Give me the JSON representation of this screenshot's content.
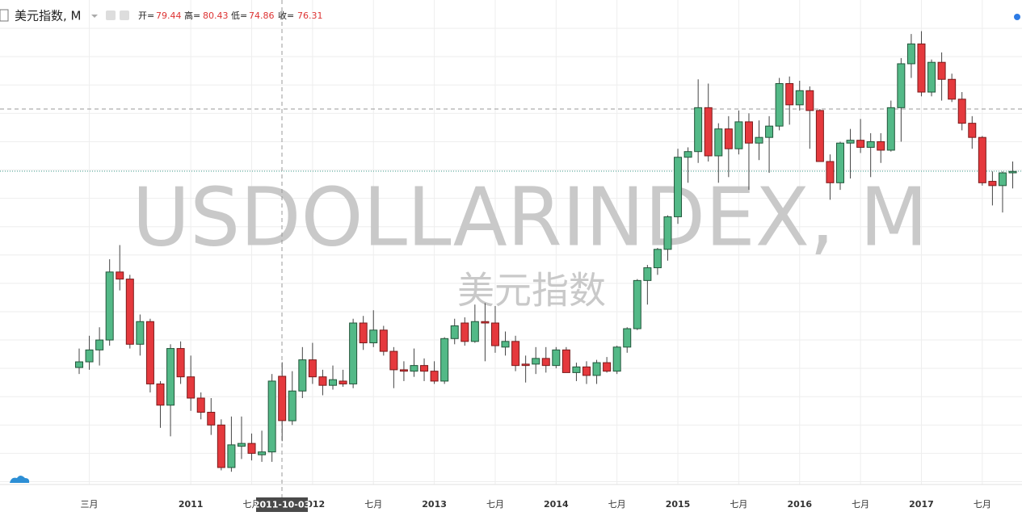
{
  "chart_data": {
    "type": "candlestick",
    "symbol": "美元指数, M",
    "ohlc_labels": [
      "开=",
      "高=",
      "低=",
      "收="
    ],
    "watermark": "USDOLLARINDEX, M",
    "watermark_subtitle": "美元指数",
    "crosshair_label": "2011-10-03",
    "categories": [
      null,
      "三月",
      null,
      null,
      null,
      null,
      null,
      null,
      null,
      null,
      null,
      "2011",
      null,
      null,
      null,
      null,
      null,
      "七月",
      null,
      null,
      null,
      null,
      null,
      "2012",
      null,
      null,
      null,
      null,
      null,
      "七月",
      null,
      null,
      null,
      null,
      null,
      "2013",
      null,
      null,
      null,
      null,
      null,
      "七月",
      null,
      null,
      null,
      null,
      null,
      "2014",
      null,
      null,
      null,
      null,
      null,
      "七月",
      null,
      null,
      null,
      null,
      null,
      "2015",
      null,
      null,
      null,
      null,
      null,
      "七月",
      null,
      null,
      null,
      null,
      null,
      "2016",
      null,
      null,
      null,
      null,
      null,
      "七月",
      null,
      null,
      null,
      null,
      null,
      "2017",
      null,
      null,
      null,
      null,
      null,
      "七月",
      null,
      null,
      null
    ],
    "open": [
      80.06,
      80.46,
      81.3,
      82.0,
      86.8,
      86.3,
      81.7,
      83.3,
      78.9,
      77.4,
      81.4,
      79.4,
      77.9,
      76.9,
      76.0,
      73.0,
      74.5,
      74.7,
      73.9,
      74.1,
      79.44,
      76.3,
      78.4,
      80.6,
      79.4,
      78.8,
      79.1,
      78.9,
      83.2,
      81.8,
      82.7,
      81.2,
      79.9,
      79.8,
      80.2,
      79.8,
      79.1,
      82.1,
      83.2,
      81.9,
      83.3,
      83.2,
      81.5,
      81.9,
      80.3,
      80.3,
      80.7,
      80.2,
      81.3,
      79.7,
      80.1,
      79.5,
      80.4,
      79.8,
      81.5,
      82.8,
      86.2,
      87.1,
      88.4,
      90.7,
      94.9,
      95.3,
      98.4,
      95.0,
      96.9,
      95.5,
      97.4,
      95.9,
      96.3,
      97.1,
      100.1,
      98.6,
      99.6,
      98.2,
      94.6,
      93.1,
      95.9,
      96.1,
      95.6,
      96.0,
      95.4,
      98.4,
      101.5,
      102.9,
      99.5,
      101.6,
      100.4,
      99.0,
      97.3,
      96.3,
      93.2,
      92.9,
      93.8
    ],
    "high": [
      81.4,
      82.3,
      82.9,
      87.7,
      88.7,
      86.6,
      83.8,
      83.5,
      79.1,
      81.7,
      81.9,
      80.9,
      78.3,
      77.9,
      76.4,
      76.6,
      76.6,
      75.4,
      75.6,
      79.6,
      80.43,
      79.8,
      81.5,
      81.8,
      79.9,
      80.2,
      79.9,
      83.5,
      83.7,
      84.1,
      83.0,
      81.5,
      80.5,
      81.4,
      80.7,
      80.5,
      82.2,
      83.5,
      83.6,
      84.5,
      84.6,
      84.4,
      82.6,
      82.3,
      80.9,
      81.5,
      81.5,
      81.5,
      81.5,
      80.4,
      80.5,
      80.6,
      80.8,
      81.6,
      82.9,
      86.3,
      87.3,
      88.5,
      90.8,
      95.5,
      95.6,
      100.4,
      100.1,
      97.3,
      97.8,
      98.2,
      98.0,
      97.5,
      97.8,
      100.5,
      100.6,
      100.3,
      99.9,
      98.3,
      95.1,
      96.0,
      96.9,
      97.6,
      96.6,
      96.6,
      98.9,
      101.9,
      103.6,
      103.8,
      101.8,
      102.3,
      100.8,
      99.5,
      97.8,
      96.4,
      93.9,
      93.9,
      94.6
    ],
    "low": [
      79.6,
      79.9,
      80.2,
      81.6,
      85.5,
      81.4,
      80.9,
      78.3,
      75.8,
      75.2,
      78.9,
      77.0,
      76.4,
      75.3,
      72.8,
      72.7,
      73.6,
      73.5,
      73.4,
      73.4,
      74.86,
      76.0,
      77.9,
      78.9,
      78.1,
      78.5,
      78.7,
      78.6,
      81.3,
      81.5,
      80.9,
      78.6,
      79.1,
      79.4,
      79.1,
      78.9,
      78.9,
      81.7,
      81.6,
      81.8,
      80.5,
      81.1,
      80.9,
      79.8,
      79.0,
      79.6,
      79.7,
      80.0,
      79.7,
      79.1,
      78.9,
      78.9,
      79.7,
      79.6,
      81.1,
      82.7,
      84.5,
      86.6,
      87.6,
      90.2,
      93.1,
      94.5,
      94.6,
      93.1,
      93.5,
      95.1,
      92.6,
      94.7,
      93.8,
      96.8,
      97.2,
      98.2,
      95.5,
      94.6,
      91.9,
      92.6,
      93.4,
      95.2,
      93.5,
      94.5,
      95.3,
      96.0,
      100.5,
      99.2,
      99.2,
      98.9,
      98.8,
      96.8,
      95.5,
      92.9,
      91.5,
      91.0,
      92.7
    ],
    "close": [
      80.46,
      81.3,
      82.0,
      86.8,
      86.3,
      81.7,
      83.3,
      78.9,
      77.4,
      81.4,
      79.4,
      77.9,
      76.9,
      76.0,
      73.0,
      74.6,
      74.7,
      74.0,
      74.1,
      79.1,
      76.31,
      78.4,
      80.6,
      79.4,
      78.8,
      79.2,
      78.9,
      83.2,
      81.8,
      82.7,
      81.2,
      79.9,
      79.8,
      80.2,
      79.8,
      79.1,
      82.1,
      83.0,
      81.9,
      83.3,
      83.2,
      81.6,
      81.9,
      80.2,
      80.2,
      80.7,
      80.2,
      81.3,
      79.7,
      80.1,
      79.5,
      80.4,
      79.8,
      81.5,
      82.8,
      86.2,
      87.1,
      88.4,
      90.7,
      94.9,
      95.3,
      98.4,
      95.0,
      96.9,
      95.5,
      97.4,
      95.9,
      96.3,
      97.1,
      100.1,
      98.6,
      99.6,
      98.2,
      94.6,
      93.1,
      95.9,
      96.1,
      95.6,
      96.0,
      95.4,
      98.4,
      101.5,
      102.9,
      99.5,
      101.6,
      100.4,
      99.0,
      97.3,
      96.3,
      93.1,
      92.9,
      93.8,
      93.9
    ],
    "up_color": "#53b987",
    "down_color": "#e5393d",
    "ylim": [
      71.8,
      106.0
    ],
    "yticks": [
      72,
      74,
      76,
      78,
      80,
      82,
      84,
      86,
      88,
      90,
      92,
      94,
      96,
      98,
      100,
      102,
      104
    ],
    "grid": true
  }
}
